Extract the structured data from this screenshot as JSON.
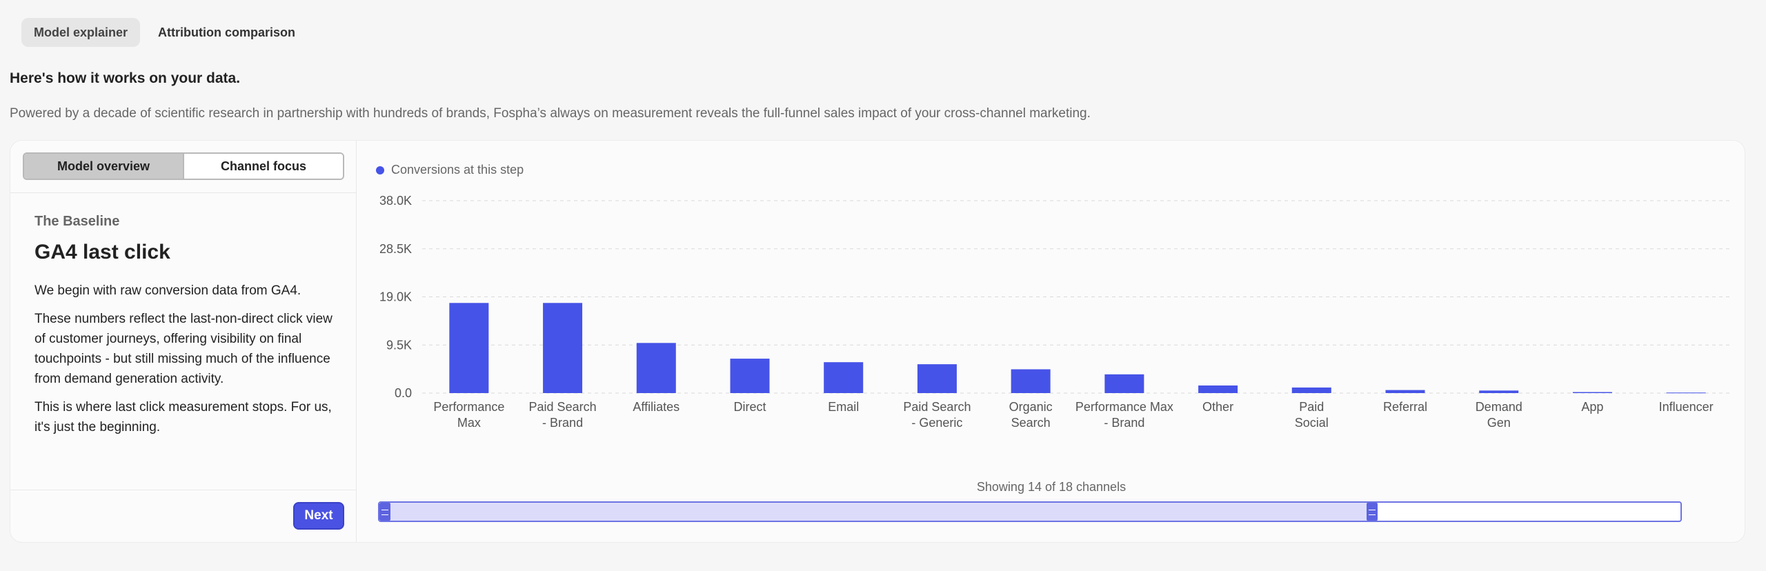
{
  "tabs": [
    "Model explainer",
    "Attribution comparison"
  ],
  "headline": "Here's how it works on your data.",
  "subline": "Powered by a decade of scientific research in partnership with hundreds of brands, Fospha’s always on measurement reveals the full-funnel sales impact of your cross-channel marketing.",
  "left": {
    "seg": [
      "Model overview",
      "Channel focus"
    ],
    "kicker": "The Baseline",
    "title": "GA4 last click",
    "p1": "We begin with raw conversion data from GA4.",
    "p2": "These numbers reflect the last-non-direct click view of customer journeys, offering visibility on final touchpoints - but still missing much of the influence from demand generation activity.",
    "p3": "This is where last click measurement stops. For us, it's just the beginning.",
    "next": "Next"
  },
  "legend_label": "Conversions at this step",
  "showing": "Showing 14 of 18 channels",
  "colors": {
    "bar": "#4653e8",
    "accent": "#4a52e3"
  },
  "chart_data": {
    "type": "bar",
    "categories": [
      [
        "Performance",
        "Max"
      ],
      [
        "Paid Search",
        "- Brand"
      ],
      [
        "Affiliates"
      ],
      [
        "Direct"
      ],
      [
        "Email"
      ],
      [
        "Paid Search",
        "- Generic"
      ],
      [
        "Organic",
        "Search"
      ],
      [
        "Performance Max",
        "- Brand"
      ],
      [
        "Other"
      ],
      [
        "Paid",
        "Social"
      ],
      [
        "Referral"
      ],
      [
        "Demand",
        "Gen"
      ],
      [
        "App"
      ],
      [
        "Influencer"
      ]
    ],
    "values": [
      17800,
      17800,
      9900,
      6800,
      6100,
      5700,
      4700,
      3700,
      1500,
      1100,
      600,
      500,
      200,
      100
    ],
    "ylim": [
      0,
      38000
    ],
    "yticks": [
      "0.0",
      "9.5K",
      "19.0K",
      "28.5K",
      "38.0K"
    ],
    "ytick_values": [
      0,
      9500,
      19000,
      28500,
      38000
    ],
    "grid": true,
    "legend": "top-left"
  }
}
